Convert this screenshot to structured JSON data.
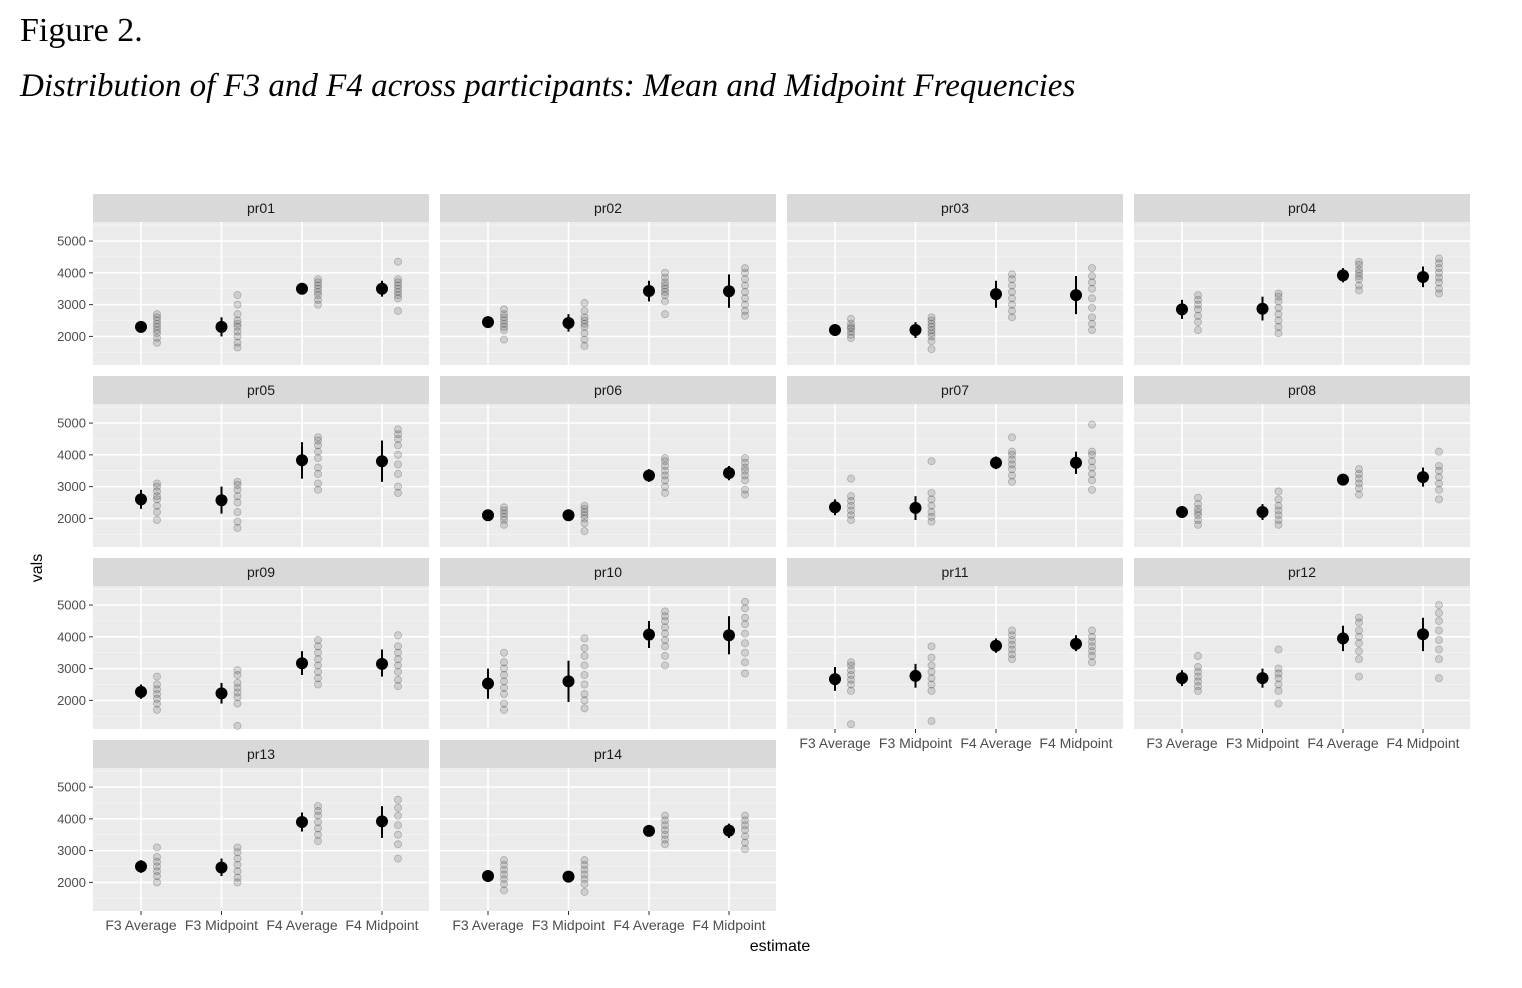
{
  "figure_label": "Figure 2.",
  "figure_title": "Distribution of F3 and F4 across participants: Mean and Midpoint Frequencies",
  "chart_data": {
    "type": "scatter",
    "xlabel": "estimate",
    "ylabel": "vals",
    "categories": [
      "F3 Average",
      "F3 Midpoint",
      "F4 Average",
      "F4 Midpoint"
    ],
    "ylim": [
      1100,
      5600
    ],
    "yticks": [
      2000,
      3000,
      4000,
      5000
    ],
    "grid": true,
    "facets": [
      {
        "name": "pr01",
        "summary": [
          {
            "mean": 2300,
            "lo": 2150,
            "hi": 2450
          },
          {
            "mean": 2300,
            "lo": 2000,
            "hi": 2600
          },
          {
            "mean": 3500,
            "lo": 3350,
            "hi": 3650
          },
          {
            "mean": 3500,
            "lo": 3250,
            "hi": 3750
          }
        ],
        "points": [
          [
            1800,
            1950,
            2100,
            2200,
            2300,
            2400,
            2500,
            2600,
            2700
          ],
          [
            1650,
            1800,
            2000,
            2150,
            2300,
            2400,
            2500,
            2700,
            3000,
            3300
          ],
          [
            3000,
            3150,
            3300,
            3400,
            3500,
            3600,
            3700,
            3800
          ],
          [
            2800,
            3200,
            3300,
            3400,
            3500,
            3600,
            3700,
            3800,
            4350
          ]
        ]
      },
      {
        "name": "pr02",
        "summary": [
          {
            "mean": 2450,
            "lo": 2300,
            "hi": 2600
          },
          {
            "mean": 2420,
            "lo": 2150,
            "hi": 2700
          },
          {
            "mean": 3430,
            "lo": 3100,
            "hi": 3750
          },
          {
            "mean": 3420,
            "lo": 2900,
            "hi": 3950
          }
        ],
        "points": [
          [
            1900,
            2200,
            2300,
            2400,
            2500,
            2600,
            2700,
            2850
          ],
          [
            1700,
            1900,
            2100,
            2300,
            2400,
            2500,
            2600,
            2800,
            3050
          ],
          [
            2700,
            3100,
            3300,
            3400,
            3500,
            3600,
            3700,
            3850,
            4000
          ],
          [
            2650,
            2800,
            3000,
            3200,
            3400,
            3600,
            3800,
            4000,
            4150
          ]
        ]
      },
      {
        "name": "pr03",
        "summary": [
          {
            "mean": 2200,
            "lo": 2050,
            "hi": 2350
          },
          {
            "mean": 2200,
            "lo": 1950,
            "hi": 2450
          },
          {
            "mean": 3330,
            "lo": 2900,
            "hi": 3750
          },
          {
            "mean": 3300,
            "lo": 2700,
            "hi": 3900
          }
        ],
        "points": [
          [
            1950,
            2050,
            2150,
            2250,
            2300,
            2400,
            2550
          ],
          [
            1600,
            1850,
            2000,
            2100,
            2200,
            2300,
            2400,
            2500,
            2600
          ],
          [
            2600,
            2800,
            3000,
            3200,
            3400,
            3600,
            3800,
            3950
          ],
          [
            2200,
            2400,
            2600,
            2900,
            3200,
            3500,
            3700,
            3900,
            4150
          ]
        ]
      },
      {
        "name": "pr04",
        "summary": [
          {
            "mean": 2850,
            "lo": 2550,
            "hi": 3150
          },
          {
            "mean": 2870,
            "lo": 2500,
            "hi": 3250
          },
          {
            "mean": 3920,
            "lo": 3700,
            "hi": 4150
          },
          {
            "mean": 3870,
            "lo": 3550,
            "hi": 4200
          }
        ],
        "points": [
          [
            2200,
            2450,
            2650,
            2850,
            3000,
            3150,
            3300
          ],
          [
            2100,
            2300,
            2500,
            2700,
            2900,
            3100,
            3250,
            3350
          ],
          [
            3450,
            3600,
            3800,
            3900,
            4000,
            4100,
            4250,
            4350
          ],
          [
            3350,
            3500,
            3700,
            3850,
            4000,
            4150,
            4300,
            4450
          ]
        ]
      },
      {
        "name": "pr05",
        "summary": [
          {
            "mean": 2600,
            "lo": 2300,
            "hi": 2900
          },
          {
            "mean": 2570,
            "lo": 2150,
            "hi": 3000
          },
          {
            "mean": 3830,
            "lo": 3250,
            "hi": 4400
          },
          {
            "mean": 3800,
            "lo": 3150,
            "hi": 4450
          }
        ],
        "points": [
          [
            1950,
            2200,
            2400,
            2600,
            2700,
            2850,
            3000,
            3100
          ],
          [
            1700,
            1900,
            2200,
            2500,
            2700,
            2900,
            3050,
            3150
          ],
          [
            2900,
            3100,
            3400,
            3600,
            3900,
            4100,
            4300,
            4450,
            4550
          ],
          [
            2800,
            3000,
            3400,
            3700,
            4000,
            4300,
            4500,
            4650,
            4800
          ]
        ]
      },
      {
        "name": "pr06",
        "summary": [
          {
            "mean": 2100,
            "lo": 2000,
            "hi": 2200
          },
          {
            "mean": 2100,
            "lo": 2000,
            "hi": 2200
          },
          {
            "mean": 3350,
            "lo": 3150,
            "hi": 3550
          },
          {
            "mean": 3430,
            "lo": 3200,
            "hi": 3650
          }
        ],
        "points": [
          [
            1800,
            1950,
            2050,
            2150,
            2250,
            2350
          ],
          [
            1600,
            1850,
            2000,
            2100,
            2200,
            2300,
            2400
          ],
          [
            2800,
            3000,
            3200,
            3350,
            3500,
            3650,
            3800,
            3900
          ],
          [
            2750,
            2900,
            3200,
            3350,
            3500,
            3600,
            3750,
            3900
          ]
        ]
      },
      {
        "name": "pr07",
        "summary": [
          {
            "mean": 2350,
            "lo": 2100,
            "hi": 2600
          },
          {
            "mean": 2330,
            "lo": 1950,
            "hi": 2700
          },
          {
            "mean": 3750,
            "lo": 3550,
            "hi": 3950
          },
          {
            "mean": 3750,
            "lo": 3400,
            "hi": 4100
          }
        ],
        "points": [
          [
            1950,
            2100,
            2250,
            2400,
            2550,
            2700,
            3250
          ],
          [
            1900,
            2050,
            2200,
            2400,
            2600,
            2800,
            3800
          ],
          [
            3150,
            3350,
            3550,
            3700,
            3850,
            4000,
            4100,
            4550
          ],
          [
            2900,
            3200,
            3400,
            3600,
            3800,
            4000,
            4100,
            4950
          ]
        ]
      },
      {
        "name": "pr08",
        "summary": [
          {
            "mean": 2200,
            "lo": 2050,
            "hi": 2350
          },
          {
            "mean": 2200,
            "lo": 1950,
            "hi": 2450
          },
          {
            "mean": 3220,
            "lo": 3050,
            "hi": 3400
          },
          {
            "mean": 3300,
            "lo": 3000,
            "hi": 3600
          }
        ],
        "points": [
          [
            1800,
            1950,
            2100,
            2200,
            2300,
            2450,
            2650
          ],
          [
            1800,
            1950,
            2100,
            2250,
            2400,
            2600,
            2850
          ],
          [
            2750,
            2950,
            3100,
            3250,
            3400,
            3550
          ],
          [
            2600,
            2900,
            3100,
            3300,
            3500,
            3650,
            4100
          ]
        ]
      },
      {
        "name": "pr09",
        "summary": [
          {
            "mean": 2270,
            "lo": 2050,
            "hi": 2500
          },
          {
            "mean": 2220,
            "lo": 1900,
            "hi": 2550
          },
          {
            "mean": 3170,
            "lo": 2800,
            "hi": 3550
          },
          {
            "mean": 3150,
            "lo": 2750,
            "hi": 3600
          }
        ],
        "points": [
          [
            1700,
            1900,
            2050,
            2200,
            2350,
            2500,
            2750
          ],
          [
            1200,
            1900,
            2100,
            2250,
            2400,
            2550,
            2800,
            2950
          ],
          [
            2500,
            2700,
            2900,
            3100,
            3300,
            3500,
            3700,
            3900
          ],
          [
            2450,
            2650,
            2900,
            3100,
            3300,
            3500,
            3700,
            4050
          ]
        ]
      },
      {
        "name": "pr10",
        "summary": [
          {
            "mean": 2530,
            "lo": 2050,
            "hi": 3000
          },
          {
            "mean": 2600,
            "lo": 1950,
            "hi": 3250
          },
          {
            "mean": 4070,
            "lo": 3650,
            "hi": 4500
          },
          {
            "mean": 4050,
            "lo": 3450,
            "hi": 4650
          }
        ],
        "points": [
          [
            1700,
            1900,
            2200,
            2400,
            2600,
            2800,
            3000,
            3200,
            3500
          ],
          [
            1750,
            2000,
            2200,
            2500,
            2800,
            3100,
            3400,
            3650,
            3950
          ],
          [
            3100,
            3400,
            3700,
            3900,
            4100,
            4300,
            4500,
            4650,
            4800
          ],
          [
            2850,
            3200,
            3500,
            3800,
            4100,
            4400,
            4600,
            4900,
            5100
          ]
        ]
      },
      {
        "name": "pr11",
        "summary": [
          {
            "mean": 2670,
            "lo": 2300,
            "hi": 3050
          },
          {
            "mean": 2770,
            "lo": 2400,
            "hi": 3150
          },
          {
            "mean": 3720,
            "lo": 3500,
            "hi": 3950
          },
          {
            "mean": 3780,
            "lo": 3550,
            "hi": 4050
          }
        ],
        "points": [
          [
            1250,
            2300,
            2500,
            2650,
            2800,
            2950,
            3100,
            3200
          ],
          [
            1350,
            2300,
            2500,
            2700,
            2900,
            3100,
            3350,
            3700
          ],
          [
            3300,
            3450,
            3600,
            3750,
            3900,
            4050,
            4200
          ],
          [
            3200,
            3400,
            3550,
            3700,
            3850,
            4000,
            4200
          ]
        ]
      },
      {
        "name": "pr12",
        "summary": [
          {
            "mean": 2700,
            "lo": 2450,
            "hi": 2950
          },
          {
            "mean": 2700,
            "lo": 2400,
            "hi": 3000
          },
          {
            "mean": 3950,
            "lo": 3550,
            "hi": 4350
          },
          {
            "mean": 4080,
            "lo": 3550,
            "hi": 4600
          }
        ],
        "points": [
          [
            2300,
            2450,
            2600,
            2750,
            2900,
            3050,
            3400
          ],
          [
            1900,
            2300,
            2500,
            2700,
            2850,
            3000,
            3600
          ],
          [
            2750,
            3300,
            3550,
            3800,
            4000,
            4200,
            4450,
            4600
          ],
          [
            2700,
            3300,
            3600,
            3900,
            4200,
            4500,
            4750,
            5000
          ]
        ]
      },
      {
        "name": "pr13",
        "summary": [
          {
            "mean": 2500,
            "lo": 2300,
            "hi": 2700
          },
          {
            "mean": 2470,
            "lo": 2200,
            "hi": 2750
          },
          {
            "mean": 3900,
            "lo": 3600,
            "hi": 4200
          },
          {
            "mean": 3920,
            "lo": 3400,
            "hi": 4400
          }
        ],
        "points": [
          [
            2000,
            2200,
            2350,
            2500,
            2650,
            2800,
            3100
          ],
          [
            2000,
            2150,
            2350,
            2550,
            2750,
            2950,
            3100
          ],
          [
            3300,
            3500,
            3700,
            3900,
            4100,
            4250,
            4400
          ],
          [
            2750,
            3200,
            3500,
            3800,
            4100,
            4350,
            4600
          ]
        ]
      },
      {
        "name": "pr14",
        "summary": [
          {
            "mean": 2200,
            "lo": 2050,
            "hi": 2350
          },
          {
            "mean": 2180,
            "lo": 2000,
            "hi": 2350
          },
          {
            "mean": 3620,
            "lo": 3450,
            "hi": 3800
          },
          {
            "mean": 3630,
            "lo": 3400,
            "hi": 3850
          }
        ],
        "points": [
          [
            1750,
            1950,
            2100,
            2250,
            2400,
            2550,
            2700
          ],
          [
            1700,
            1950,
            2100,
            2250,
            2400,
            2550,
            2700
          ],
          [
            3200,
            3350,
            3500,
            3650,
            3800,
            3950,
            4100
          ],
          [
            3050,
            3250,
            3450,
            3650,
            3800,
            3950,
            4100
          ]
        ]
      }
    ]
  }
}
